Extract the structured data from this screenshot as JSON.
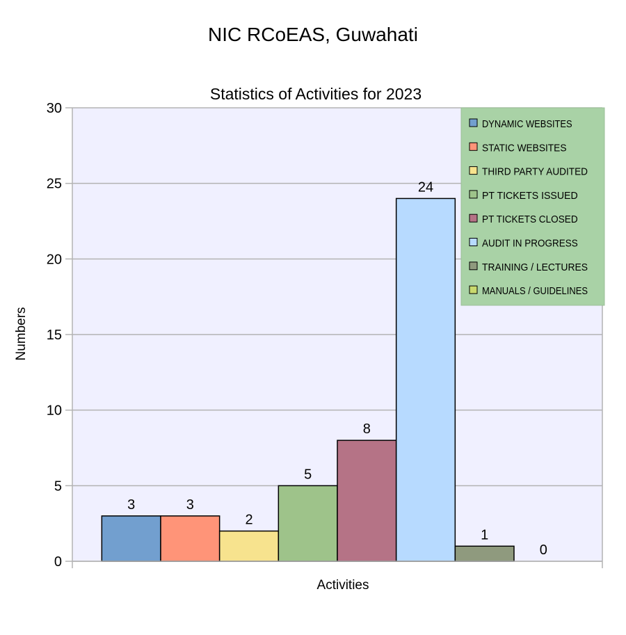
{
  "page": {
    "title": "NIC RCoEAS, Guwahati"
  },
  "chart_data": {
    "type": "bar",
    "title": "Statistics of Activities for 2023",
    "xlabel": "Activities",
    "ylabel": "Numbers",
    "ylim": [
      0,
      30
    ],
    "yticks": [
      0,
      5,
      10,
      15,
      20,
      25,
      30
    ],
    "grid": true,
    "legend_position": "top-right",
    "series": [
      {
        "name": "DYNAMIC WEBSITES",
        "value": 3,
        "color": "#729fcf"
      },
      {
        "name": "STATIC WEBSITES",
        "value": 3,
        "color": "#ff9478"
      },
      {
        "name": "THIRD PARTY AUDITED",
        "value": 2,
        "color": "#f7e38e"
      },
      {
        "name": "PT TICKETS ISSUED",
        "value": 5,
        "color": "#9ec38a"
      },
      {
        "name": "PT TICKETS CLOSED",
        "value": 8,
        "color": "#b57386"
      },
      {
        "name": "AUDIT IN PROGRESS",
        "value": 24,
        "color": "#b7daff"
      },
      {
        "name": "TRAINING / LECTURES",
        "value": 1,
        "color": "#8f9a7e"
      },
      {
        "name": "MANUALS / GUIDELINES",
        "value": 0,
        "color": "#c9d96e"
      }
    ],
    "colors": {
      "plot_background": "#f0f0ff",
      "legend_background": "#a9d2a6",
      "gridline": "#b3b3b3"
    }
  }
}
